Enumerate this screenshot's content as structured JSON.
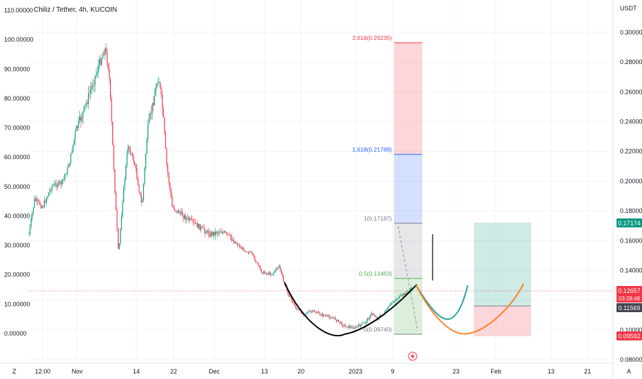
{
  "header": {
    "title": "Chiliz / Tether, 4h, KUCOIN",
    "currency": "USDT"
  },
  "chart_data": {
    "type": "candlestick",
    "title": "Chiliz / Tether, 4h, KUCOIN",
    "left_axis": {
      "ticks": [
        "110.00000",
        "100.00000",
        "90.00000",
        "80.00000",
        "70.00000",
        "60.00000",
        "50.00000",
        "40.00000",
        "30.00000",
        "20.00000",
        "10.00000",
        "0.00000"
      ],
      "range": [
        -5,
        112
      ]
    },
    "right_axis": {
      "unit": "USDT",
      "ticks": [
        "0.30000",
        "0.28000",
        "0.26000",
        "0.24000",
        "0.22000",
        "0.20000",
        "0.18000",
        "0.16000",
        "0.14000",
        "0.12000",
        "0.10000",
        "0.08000"
      ],
      "range": [
        0.078,
        0.313
      ]
    },
    "x_axis": {
      "ticks": [
        "12:00",
        "Nov",
        "14",
        "22",
        "Dec",
        "13",
        "20",
        "2023",
        "9",
        "23",
        "Feb",
        "13",
        "21"
      ]
    },
    "price_labels": [
      {
        "value": "0.17174",
        "color": "#089981"
      },
      {
        "value": "0.12657",
        "extra": "03:28:48",
        "color": "#f23645"
      },
      {
        "value": "0.11569",
        "color": "#434651"
      },
      {
        "value": "0.09592",
        "color": "#f23645"
      }
    ],
    "fibonacci_levels": [
      {
        "label": "2.618(0.29235)",
        "ratio": 2.618,
        "price": 0.29235,
        "color": "#f23645"
      },
      {
        "label": "1.618(0.21789)",
        "ratio": 1.618,
        "price": 0.21789,
        "color": "#2962ff"
      },
      {
        "label": "1(0.17187)",
        "ratio": 1,
        "price": 0.17187,
        "color": "#787b86"
      },
      {
        "label": "0.5(0.13463)",
        "ratio": 0.5,
        "price": 0.13463,
        "color": "#4caf50"
      },
      {
        "label": "0(0.09740)",
        "ratio": 0,
        "price": 0.0974,
        "color": "#787b86"
      }
    ],
    "position": {
      "target": 0.17174,
      "entry": 0.11569,
      "stop": 0.09592
    },
    "current_price": 0.12657
  },
  "footer": {
    "left_mark": "Z",
    "right_mark": "A"
  }
}
